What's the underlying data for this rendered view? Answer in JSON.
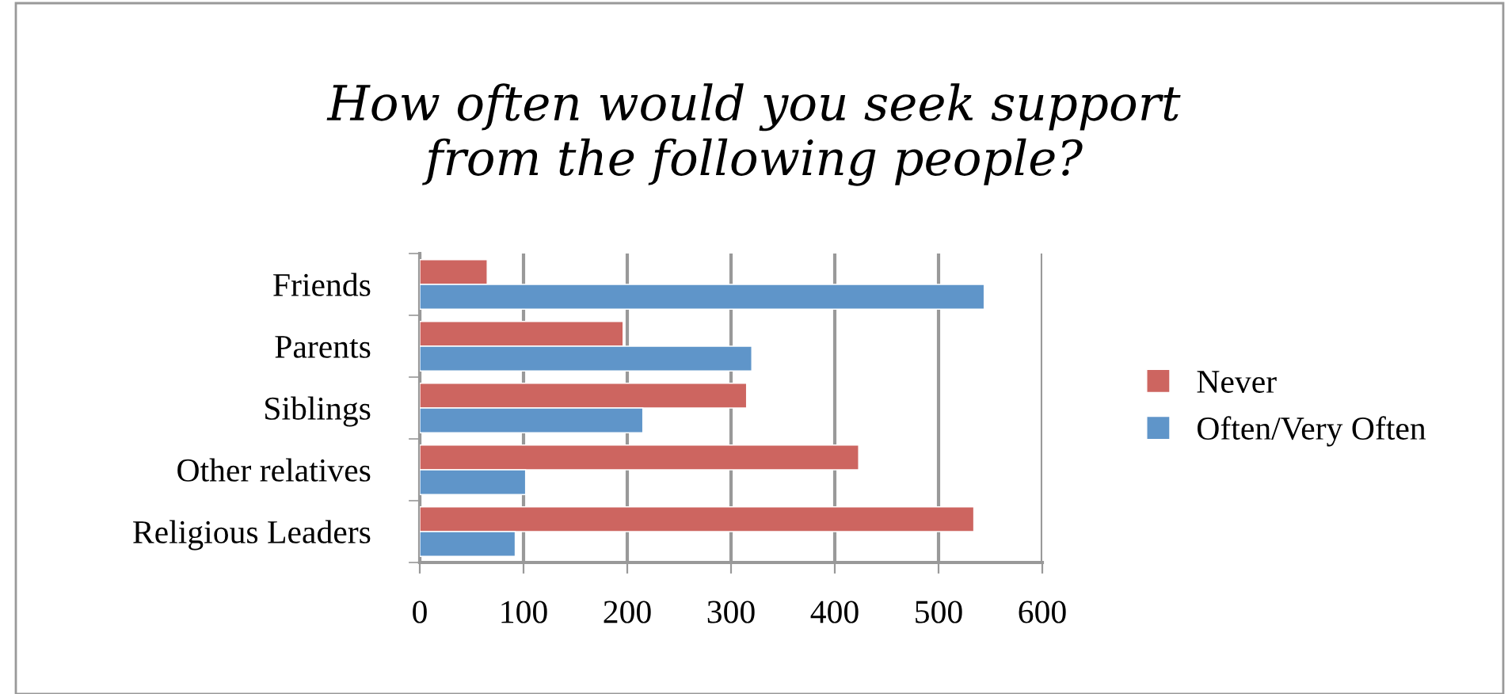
{
  "chart_data": {
    "type": "bar",
    "orientation": "horizontal",
    "title": "How often would you seek support\nfrom the following people?",
    "categories": [
      "Friends",
      "Parents",
      "Siblings",
      "Other relatives",
      "Religious Leaders"
    ],
    "series": [
      {
        "name": "Never",
        "color": "#cd6560",
        "values": [
          65,
          196,
          315,
          423,
          534
        ]
      },
      {
        "name": "Often/Very Often",
        "color": "#5f95c9",
        "values": [
          544,
          320,
          215,
          102,
          92
        ]
      }
    ],
    "xlim": [
      0,
      600
    ],
    "xticks": [
      0,
      100,
      200,
      300,
      400,
      500,
      600
    ],
    "grid": "x",
    "legend": "right"
  }
}
